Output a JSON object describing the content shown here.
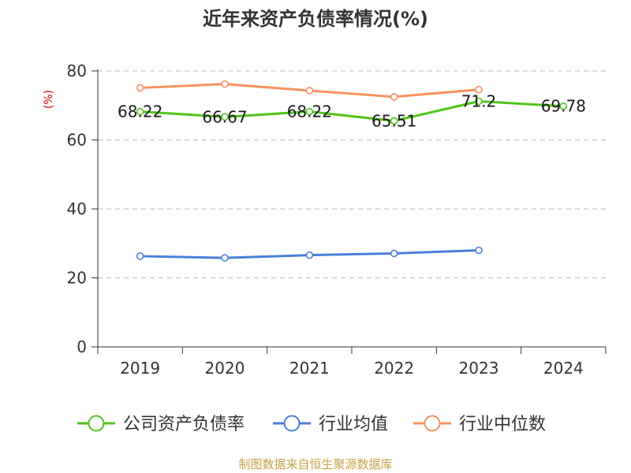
{
  "chart_data": {
    "type": "line",
    "title": "近年来资产负债率情况(%)",
    "ylabel": "(%)",
    "xlabel": "",
    "categories": [
      "2019",
      "2020",
      "2021",
      "2022",
      "2023",
      "2024"
    ],
    "ylim": [
      0,
      80
    ],
    "yticks": [
      0,
      20,
      40,
      60,
      80
    ],
    "grid": true,
    "legend_position": "bottom",
    "series": [
      {
        "name": "公司资产负债率",
        "color": "#52c41a",
        "values": [
          68.22,
          66.67,
          68.22,
          65.51,
          71.2,
          69.78
        ],
        "labels": [
          "68.22",
          "66.67",
          "68.22",
          "65.51",
          "71.2",
          "69.78"
        ]
      },
      {
        "name": "行业均值",
        "color": "#4a7fd9",
        "values": [
          26.3,
          25.8,
          26.6,
          27.1,
          28.0,
          null
        ],
        "labels": null
      },
      {
        "name": "行业中位数",
        "color": "#f7915e",
        "values": [
          75.1,
          76.2,
          74.3,
          72.5,
          74.6,
          null
        ],
        "labels": null
      }
    ]
  },
  "footer": {
    "source": "制图数据来自恒生聚源数据库"
  }
}
